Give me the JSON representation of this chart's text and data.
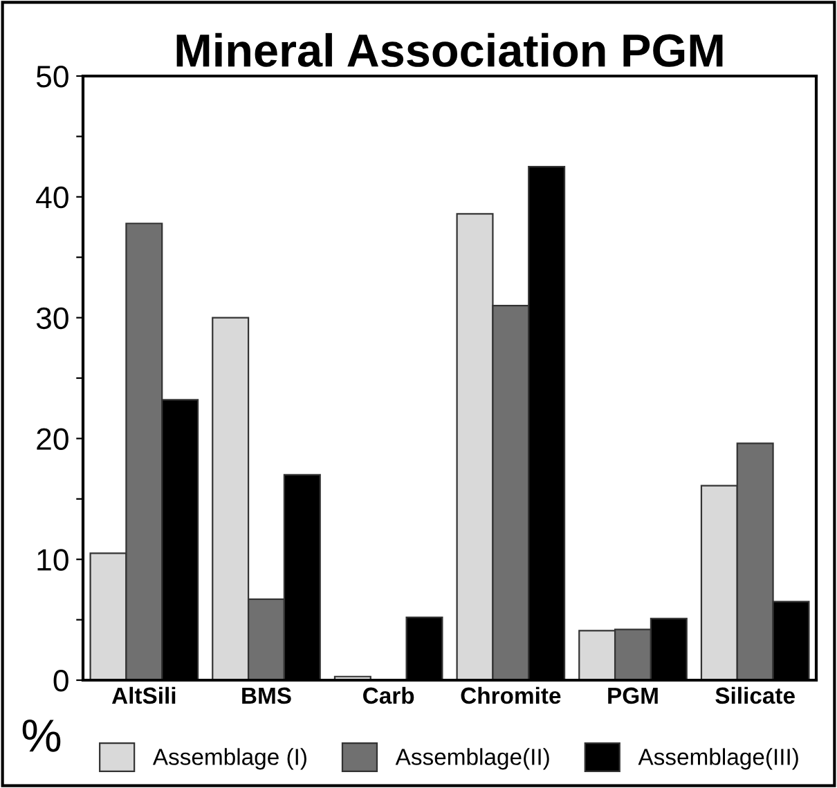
{
  "chart_data": {
    "type": "bar",
    "title": "Mineral Association PGM",
    "ylabel": "%",
    "categories": [
      "AltSili",
      "BMS",
      "Carb",
      "Chromite",
      "PGM",
      "Silicate"
    ],
    "series": [
      {
        "name": "Assemblage (I)",
        "color": "#d9d9d9",
        "values": [
          10.5,
          30.0,
          0.3,
          38.6,
          4.1,
          16.1
        ]
      },
      {
        "name": "Assemblage(II)",
        "color": "#707070",
        "values": [
          37.8,
          6.7,
          null,
          31.0,
          4.2,
          19.6
        ]
      },
      {
        "name": "Assemblage(III)",
        "color": "#000000",
        "values": [
          23.2,
          17.0,
          5.2,
          42.5,
          5.1,
          6.5
        ]
      }
    ],
    "ylim": [
      0,
      50
    ],
    "yticks": [
      0,
      {
        "value": 5,
        "label": null
      },
      10,
      {
        "value": 15,
        "label": null
      },
      20,
      {
        "value": 25,
        "label": null
      },
      30,
      {
        "value": 35,
        "label": null
      },
      40,
      {
        "value": 45,
        "label": null
      },
      50
    ],
    "grid": false,
    "legend": "bottom"
  }
}
